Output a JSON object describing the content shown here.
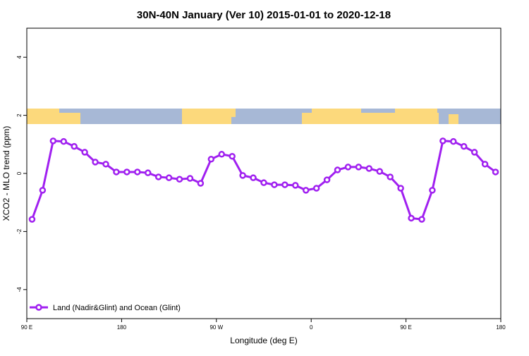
{
  "chart_data": {
    "type": "line",
    "title": "30N-40N January (Ver 10)   2015-01-01 to 2020-12-18",
    "x_label": "Longitude (deg E)",
    "y_label": "XCO2 - MLO trend (ppm)",
    "x": [
      95,
      105,
      115,
      125,
      135,
      145,
      155,
      165,
      175,
      185,
      195,
      205,
      215,
      225,
      235,
      245,
      255,
      265,
      275,
      285,
      295,
      305,
      315,
      325,
      335,
      345,
      355,
      365,
      375,
      385,
      395,
      405,
      415,
      425,
      435,
      445,
      455,
      465,
      475,
      485,
      495,
      505,
      515,
      525,
      535
    ],
    "series": [
      {
        "name": "Land (Nadir&Glint) and Ocean (Glint)",
        "color": "#a020f0",
        "values": [
          -1.58,
          -0.58,
          1.12,
          1.1,
          0.93,
          0.73,
          0.39,
          0.32,
          0.05,
          0.05,
          0.05,
          0.02,
          -0.12,
          -0.15,
          -0.2,
          -0.17,
          -0.34,
          0.49,
          0.66,
          0.59,
          -0.07,
          -0.15,
          -0.32,
          -0.39,
          -0.39,
          -0.41,
          -0.58,
          -0.51,
          -0.22,
          0.12,
          0.22,
          0.22,
          0.17,
          0.07,
          -0.12,
          -0.51,
          -1.54,
          -1.58,
          -0.58,
          1.12,
          1.1,
          0.93,
          0.73,
          0.32,
          0.05
        ]
      }
    ],
    "xlim": [
      90,
      540
    ],
    "xticks": [
      {
        "value": 90,
        "label": "90 E"
      },
      {
        "value": 180,
        "label": "180"
      },
      {
        "value": 270,
        "label": "90 W"
      },
      {
        "value": 360,
        "label": "0"
      },
      {
        "value": 450,
        "label": "90 E"
      },
      {
        "value": 540,
        "label": "180"
      }
    ],
    "ylim": [
      -5,
      5
    ],
    "yticks": [
      -4,
      -2,
      0,
      2,
      4
    ],
    "legend": "bottom-left"
  }
}
